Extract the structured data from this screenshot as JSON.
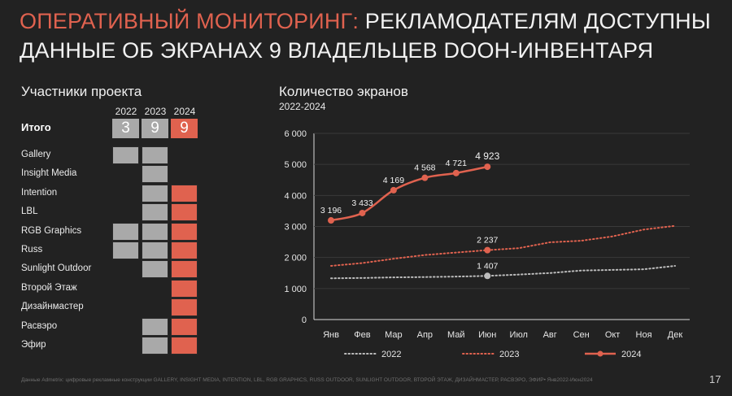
{
  "title": {
    "accent": "ОПЕРАТИВНЫЙ МОНИТОРИНГ:",
    "line1_rest": "РЕКЛАМОДАТЕЛЯМ ДОСТУПНЫ",
    "line2": "ДАННЫЕ ОБ ЭКРАНАХ 9 ВЛАДЕЛЬЦЕВ DOOH-ИНВЕНТАРЯ"
  },
  "participants": {
    "heading": "Участники проекта",
    "years": [
      "2022",
      "2023",
      "2024"
    ],
    "total_label": "Итого",
    "totals": [
      "3",
      "9",
      "9"
    ],
    "rows": [
      {
        "name": "Gallery",
        "cells": [
          1,
          1,
          0
        ]
      },
      {
        "name": "Insight Media",
        "cells": [
          0,
          1,
          0
        ]
      },
      {
        "name": "Intention",
        "cells": [
          0,
          1,
          1
        ]
      },
      {
        "name": "LBL",
        "cells": [
          0,
          1,
          1
        ]
      },
      {
        "name": "RGB Graphics",
        "cells": [
          1,
          1,
          1
        ]
      },
      {
        "name": "Russ",
        "cells": [
          1,
          1,
          1
        ]
      },
      {
        "name": "Sunlight Outdoor",
        "cells": [
          0,
          1,
          1
        ]
      },
      {
        "name": "Второй Этаж",
        "cells": [
          0,
          0,
          1
        ]
      },
      {
        "name": "Дизайнмастер",
        "cells": [
          0,
          0,
          1
        ]
      },
      {
        "name": "Расвэро",
        "cells": [
          0,
          1,
          1
        ]
      },
      {
        "name": "Эфир",
        "cells": [
          0,
          1,
          1
        ]
      }
    ],
    "colors": {
      "gray": "#a9a9a9",
      "red": "#e0624f"
    }
  },
  "chart_data": {
    "type": "line",
    "title": "Количество экранов",
    "subtitle": "2022-2024",
    "categories": [
      "Янв",
      "Фев",
      "Мар",
      "Апр",
      "Май",
      "Июн",
      "Июл",
      "Авг",
      "Сен",
      "Окт",
      "Ноя",
      "Дек"
    ],
    "ylim": [
      0,
      6000
    ],
    "yticks": [
      0,
      1000,
      2000,
      3000,
      4000,
      5000,
      6000
    ],
    "ytick_labels": [
      "0",
      "1 000",
      "2 000",
      "3 000",
      "4 000",
      "5 000",
      "6 000"
    ],
    "grid": true,
    "legend_position": "bottom",
    "series": [
      {
        "name": "2022",
        "style": "dotted",
        "color": "#bdbdbd",
        "values": [
          1330,
          1340,
          1360,
          1370,
          1385,
          1407,
          1450,
          1500,
          1580,
          1600,
          1620,
          1730
        ],
        "labels": {
          "5": "1 407"
        },
        "markers": [
          5
        ]
      },
      {
        "name": "2023",
        "style": "dotted",
        "color": "#e0624f",
        "values": [
          1730,
          1820,
          1960,
          2080,
          2160,
          2237,
          2300,
          2490,
          2540,
          2680,
          2900,
          3020
        ],
        "labels": {
          "5": "2 237"
        },
        "markers": [
          5
        ]
      },
      {
        "name": "2024",
        "style": "solid",
        "color": "#e0624f",
        "values": [
          3196,
          3433,
          4169,
          4568,
          4721,
          4923,
          null,
          null,
          null,
          null,
          null,
          null
        ],
        "labels": {
          "0": "3 196",
          "1": "3 433",
          "2": "4 169",
          "3": "4 568",
          "4": "4 721",
          "5": "4 923"
        },
        "markers": [
          0,
          1,
          2,
          3,
          4,
          5
        ]
      }
    ]
  },
  "footnote": "Данные Admetrix: цифровые рекламные конструкции GALLERY, INSIGHT MEDIA, INTENTION, LBL, RGB GRAPHICS, RUSS OUTDOOR, SUNLIGHT OUTDOOR, ВТОРОЙ ЭТАЖ, ДИЗАЙНМАСТЕР, РАСВЭРО, ЭФИР• Янв2022-Июн2024",
  "page_number": "17"
}
